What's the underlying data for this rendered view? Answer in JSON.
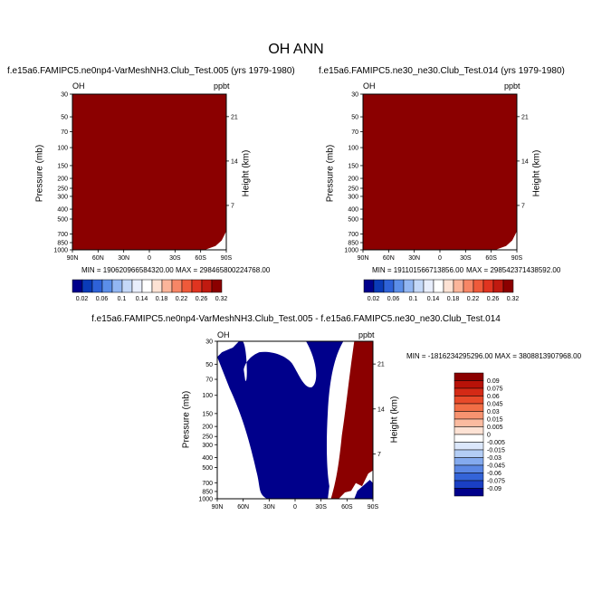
{
  "title": "OH ANN",
  "colors": {
    "dark_red": "#8b0000",
    "dark_blue": "#00008b",
    "frame": "#000000",
    "bg": "#ffffff"
  },
  "chart_data": [
    {
      "type": "heatmap",
      "title": "f.e15a6.FAMIPC5.ne0np4-VarMeshNH3.Club_Test.005 (yrs 1979-1980)",
      "field_label": "OH",
      "units": "ppbt",
      "xlabel": "",
      "ylabel": "Pressure (mb)",
      "y2label": "Height (km)",
      "xticks": [
        "90N",
        "60N",
        "30N",
        "0",
        "30S",
        "60S",
        "90S"
      ],
      "yticks": [
        "30",
        "50",
        "70",
        "100",
        "150",
        "200",
        "250",
        "300",
        "400",
        "500",
        "700",
        "850",
        "1000"
      ],
      "y2ticks": [
        "21",
        "14",
        "7"
      ],
      "ylim": [
        1000,
        30
      ],
      "y_scale": "log",
      "min_text": "MIN = 190620966584320.00",
      "max_text": "MAX = 298465800224768.00",
      "colorbar": {
        "levels": [
          "0.02",
          "0.06",
          "0.1",
          "0.14",
          "0.18",
          "0.22",
          "0.26",
          "0.32"
        ],
        "colors": [
          "#00008b",
          "#0a3bb8",
          "#2e62d8",
          "#5b8ee8",
          "#92b6f2",
          "#c4d8f8",
          "#e8eefc",
          "#ffffff",
          "#fde2d4",
          "#fbb59a",
          "#f78666",
          "#ef5a3a",
          "#e03420",
          "#c01a10",
          "#8b0000"
        ]
      },
      "note_field": "Field value exceeds the top colorbar level everywhere (uniform dark red)."
    },
    {
      "type": "heatmap",
      "title": "f.e15a6.FAMIPC5.ne30_ne30.Club_Test.014 (yrs 1979-1980)",
      "field_label": "OH",
      "units": "ppbt",
      "xlabel": "",
      "ylabel": "Pressure (mb)",
      "y2label": "Height (km)",
      "xticks": [
        "90N",
        "60N",
        "30N",
        "0",
        "30S",
        "60S",
        "90S"
      ],
      "yticks": [
        "30",
        "50",
        "70",
        "100",
        "150",
        "200",
        "250",
        "300",
        "400",
        "500",
        "700",
        "850",
        "1000"
      ],
      "y2ticks": [
        "21",
        "14",
        "7"
      ],
      "ylim": [
        1000,
        30
      ],
      "y_scale": "log",
      "min_text": "MIN = 191101566713856.00",
      "max_text": "MAX = 298542371438592.00",
      "colorbar": {
        "levels": [
          "0.02",
          "0.06",
          "0.1",
          "0.14",
          "0.18",
          "0.22",
          "0.26",
          "0.32"
        ],
        "colors": [
          "#00008b",
          "#0a3bb8",
          "#2e62d8",
          "#5b8ee8",
          "#92b6f2",
          "#c4d8f8",
          "#e8eefc",
          "#ffffff",
          "#fde2d4",
          "#fbb59a",
          "#f78666",
          "#ef5a3a",
          "#e03420",
          "#c01a10",
          "#8b0000"
        ]
      }
    },
    {
      "type": "heatmap",
      "title": "f.e15a6.FAMIPC5.ne0np4-VarMeshNH3.Club_Test.005 - f.e15a6.FAMIPC5.ne30_ne30.Club_Test.014",
      "field_label": "OH",
      "units": "ppbt",
      "xlabel": "",
      "ylabel": "Pressure (mb)",
      "y2label": "Height (km)",
      "xticks": [
        "90N",
        "60N",
        "30N",
        "0",
        "30S",
        "60S",
        "90S"
      ],
      "yticks": [
        "30",
        "50",
        "70",
        "100",
        "150",
        "200",
        "250",
        "300",
        "400",
        "500",
        "700",
        "850",
        "1000"
      ],
      "y2ticks": [
        "21",
        "14",
        "7"
      ],
      "ylim": [
        1000,
        30
      ],
      "y_scale": "log",
      "minmax_text": "MIN = -1816234295296.00  MAX = 3808813907968.00",
      "colorbar": {
        "orientation": "vertical",
        "levels": [
          "0.09",
          "0.075",
          "0.06",
          "0.045",
          "0.03",
          "0.015",
          "0.005",
          "0",
          "-0.005",
          "-0.015",
          "-0.03",
          "-0.045",
          "-0.06",
          "-0.075",
          "-0.09"
        ],
        "colors": [
          "#8b0000",
          "#b81208",
          "#d42a16",
          "#e84a2a",
          "#f26e46",
          "#f79370",
          "#fbbba0",
          "#fde2d4",
          "#ffffff",
          "#dbe7fb",
          "#b3cdf5",
          "#84aaee",
          "#5b87e4",
          "#3464d8",
          "#1a3fc4",
          "#00008b"
        ]
      }
    }
  ]
}
